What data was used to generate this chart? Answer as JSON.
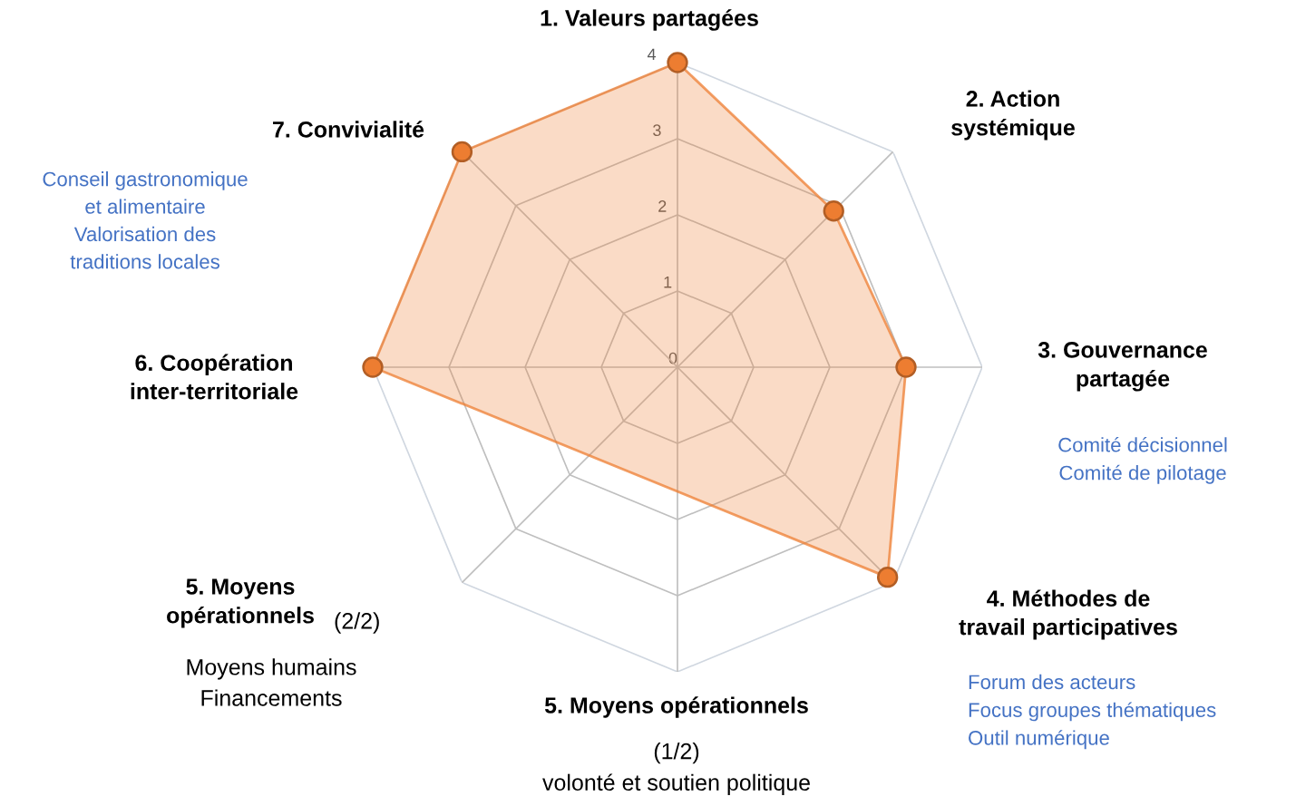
{
  "chart_data": {
    "type": "radar",
    "categories": [
      "1. Valeurs partagées",
      "2. Action\nsystémique",
      "3. Gouvernance\npartagée",
      "4. Méthodes de\ntravail participatives",
      "5. Moyens opérationnels",
      "5. Moyens\nopérationnels",
      "6. Coopération\ninter-territoriale",
      "7. Convivialité"
    ],
    "series": [
      {
        "color": "#ed7d31",
        "values": [
          4,
          2.9,
          3,
          3.9,
          null,
          null,
          4,
          4
        ]
      }
    ],
    "ylim": [
      0,
      4
    ],
    "yticks": [
      0,
      1,
      2,
      3,
      4
    ],
    "grid": true,
    "marker": "circle",
    "annotations": [
      "(1/2)\nvolonté et soutien politique",
      "(2/2)",
      "Moyens humains\nFinancements",
      "Conseil gastronomique\net alimentaire\nValorisation des\ntraditions locales",
      "Comité décisionnel\nComité de pilotage",
      "Forum des acteurs\nFocus groupes thématiques\nOutil numérique"
    ]
  }
}
